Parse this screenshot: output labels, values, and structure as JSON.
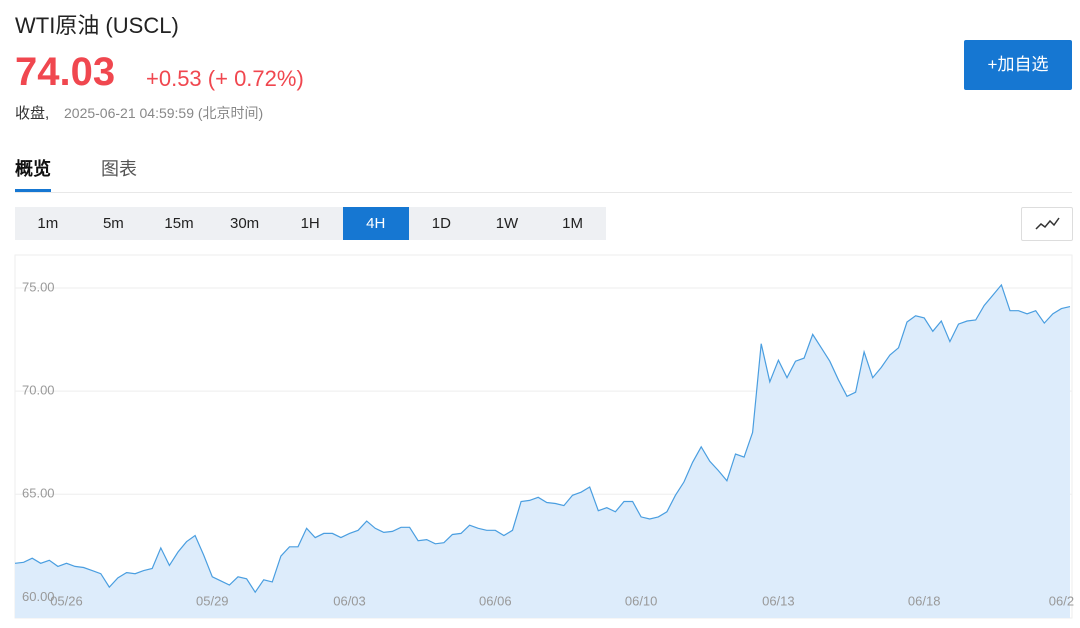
{
  "header": {
    "title": "WTI原油 (USCL)",
    "price": "74.03",
    "change": "+0.53 (+ 0.72%)",
    "status": "收盘,",
    "time": "2025-06-21 04:59:59 (北京时间)",
    "watch_button": "+加自选"
  },
  "tabs": [
    "概览",
    "图表"
  ],
  "intervals": [
    "1m",
    "5m",
    "15m",
    "30m",
    "1H",
    "4H",
    "1D",
    "1W",
    "1M"
  ],
  "chart_data": {
    "type": "area",
    "color": "#4a9ee0",
    "fill": "#ddecfb",
    "grid": true,
    "values": [
      61.65,
      61.7,
      61.9,
      61.65,
      61.8,
      61.5,
      61.65,
      61.5,
      61.45,
      61.3,
      61.15,
      60.5,
      60.95,
      61.2,
      61.15,
      61.3,
      61.4,
      62.4,
      61.55,
      62.2,
      62.7,
      63.0,
      62.05,
      61.0,
      60.8,
      60.6,
      61.0,
      60.9,
      60.25,
      60.85,
      60.75,
      62.0,
      62.45,
      62.45,
      63.35,
      62.9,
      63.1,
      63.1,
      62.9,
      63.1,
      63.25,
      63.7,
      63.35,
      63.15,
      63.2,
      63.4,
      63.4,
      62.75,
      62.8,
      62.6,
      62.65,
      63.05,
      63.1,
      63.5,
      63.35,
      63.25,
      63.25,
      63.0,
      63.25,
      64.65,
      64.7,
      64.85,
      64.6,
      64.55,
      64.45,
      64.95,
      65.1,
      65.35,
      64.2,
      64.35,
      64.15,
      64.65,
      64.65,
      63.9,
      63.8,
      63.9,
      64.15,
      64.95,
      65.6,
      66.55,
      67.3,
      66.6,
      66.15,
      65.65,
      66.95,
      66.8,
      68.0,
      72.3,
      70.45,
      71.5,
      70.65,
      71.45,
      71.6,
      72.75,
      72.1,
      71.45,
      70.55,
      69.75,
      69.95,
      71.9,
      70.65,
      71.15,
      71.75,
      72.1,
      73.35,
      73.65,
      73.55,
      72.9,
      73.4,
      72.4,
      73.25,
      73.4,
      73.45,
      74.15,
      74.65,
      75.15,
      73.9,
      73.9,
      73.75,
      73.9,
      73.3,
      73.75,
      74.0,
      74.1
    ],
    "xlim": [
      0,
      123
    ],
    "xticks": [
      {
        "value": 6,
        "label": "05/26"
      },
      {
        "value": 23,
        "label": "05/29"
      },
      {
        "value": 39,
        "label": "06/03"
      },
      {
        "value": 56,
        "label": "06/06"
      },
      {
        "value": 73,
        "label": "06/10"
      },
      {
        "value": 89,
        "label": "06/13"
      },
      {
        "value": 106,
        "label": "06/18"
      },
      {
        "value": 122,
        "label": "06/2"
      }
    ],
    "ylim": [
      59,
      76.6
    ],
    "yticks": [
      {
        "value": 60,
        "label": "60.00"
      },
      {
        "value": 65,
        "label": "65.00"
      },
      {
        "value": 70,
        "label": "70.00"
      },
      {
        "value": 75,
        "label": "75.00"
      }
    ]
  }
}
